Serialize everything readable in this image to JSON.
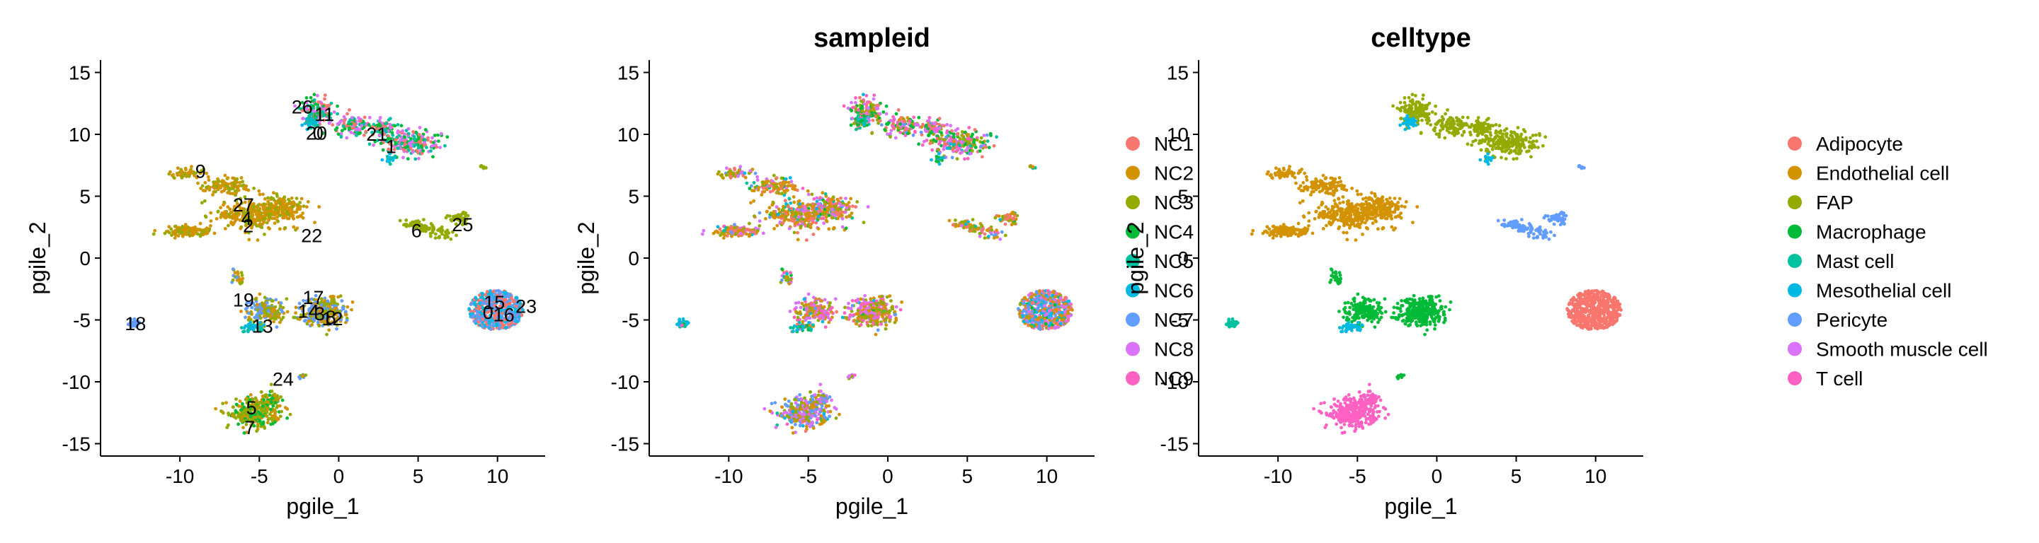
{
  "colors": {
    "NC1": "#F8766D",
    "NC2": "#D39200",
    "NC3": "#93AA00",
    "NC4": "#00BA38",
    "NC5": "#00C19F",
    "NC6": "#00B9E3",
    "NC7": "#619CFF",
    "NC8": "#DB72FB",
    "NC9": "#FF61C3",
    "Adipocyte": "#F8766D",
    "Endothelial cell": "#D39200",
    "FAP": "#93AA00",
    "Macrophage": "#00BA38",
    "Mast cell": "#00C19F",
    "Mesothelial cell": "#00B9E3",
    "Pericyte": "#619CFF",
    "Smooth muscle cell": "#DB72FB",
    "T cell": "#FF61C3"
  },
  "chart_data": [
    {
      "type": "scatter",
      "title": "",
      "xlabel": "pgile_1",
      "ylabel": "pgile_2",
      "xlim": [
        -15,
        13
      ],
      "ylim": [
        -16,
        16
      ],
      "xticks": [
        -10,
        -5,
        0,
        5,
        10
      ],
      "xtick_labels": [
        "-10",
        "-5",
        "0",
        "5",
        "10"
      ],
      "yticks": [
        -15,
        -10,
        -5,
        0,
        5,
        10,
        15
      ],
      "ytick_labels": [
        "-15",
        "-10",
        "-5",
        "0",
        "5",
        "10",
        "15"
      ],
      "legend": null,
      "cluster_labels": [
        {
          "text": "26",
          "x": -2.3,
          "y": 12.2
        },
        {
          "text": "11",
          "x": -0.9,
          "y": 11.6
        },
        {
          "text": "20",
          "x": -1.4,
          "y": 10.1
        },
        {
          "text": "0",
          "x": -1.3,
          "y": 10.1
        },
        {
          "text": "21",
          "x": 2.4,
          "y": 10.0
        },
        {
          "text": "1",
          "x": 3.3,
          "y": 9.0
        },
        {
          "text": "9",
          "x": -8.7,
          "y": 7.0
        },
        {
          "text": "27",
          "x": -6.0,
          "y": 4.3
        },
        {
          "text": "4",
          "x": -5.8,
          "y": 3.2
        },
        {
          "text": "2",
          "x": -5.7,
          "y": 2.6
        },
        {
          "text": "22",
          "x": -1.7,
          "y": 1.8
        },
        {
          "text": "6",
          "x": 4.9,
          "y": 2.2
        },
        {
          "text": "25",
          "x": 7.8,
          "y": 2.7
        },
        {
          "text": "19",
          "x": -6.0,
          "y": -3.4
        },
        {
          "text": "17",
          "x": -1.6,
          "y": -3.2
        },
        {
          "text": "14",
          "x": -1.9,
          "y": -4.3
        },
        {
          "text": "3",
          "x": -1.2,
          "y": -4.5
        },
        {
          "text": "8",
          "x": -0.5,
          "y": -4.8
        },
        {
          "text": "12",
          "x": -0.4,
          "y": -4.9
        },
        {
          "text": "13",
          "x": -4.8,
          "y": -5.5
        },
        {
          "text": "18",
          "x": -12.8,
          "y": -5.3
        },
        {
          "text": "15",
          "x": 9.8,
          "y": -3.6
        },
        {
          "text": "23",
          "x": 11.8,
          "y": -3.9
        },
        {
          "text": "0",
          "x": 9.4,
          "y": -4.4
        },
        {
          "text": "16",
          "x": 10.4,
          "y": -4.6
        },
        {
          "text": "24",
          "x": -3.5,
          "y": -9.8
        },
        {
          "text": "5",
          "x": -5.5,
          "y": -12.1
        },
        {
          "text": "7",
          "x": -5.6,
          "y": -13.7
        }
      ]
    },
    {
      "type": "scatter",
      "title": "sampleid",
      "xlabel": "pgile_1",
      "ylabel": "pgile_2",
      "xlim": [
        -15,
        13
      ],
      "ylim": [
        -16,
        16
      ],
      "xticks": [
        -10,
        -5,
        0,
        5,
        10
      ],
      "xtick_labels": [
        "-10",
        "-5",
        "0",
        "5",
        "10"
      ],
      "yticks": [
        -15,
        -10,
        -5,
        0,
        5,
        10,
        15
      ],
      "ytick_labels": [
        "-15",
        "-10",
        "-5",
        "0",
        "5",
        "10",
        "15"
      ],
      "legend": {
        "placement": "right",
        "entries": [
          "NC1",
          "NC2",
          "NC3",
          "NC4",
          "NC5",
          "NC6",
          "NC7",
          "NC8",
          "NC9"
        ]
      }
    },
    {
      "type": "scatter",
      "title": "celltype",
      "xlabel": "pgile_1",
      "ylabel": "pgile_2",
      "xlim": [
        -15,
        13
      ],
      "ylim": [
        -16,
        16
      ],
      "xticks": [
        -10,
        -5,
        0,
        5,
        10
      ],
      "xtick_labels": [
        "-10",
        "-5",
        "0",
        "5",
        "10"
      ],
      "yticks": [
        -15,
        -10,
        -5,
        0,
        5,
        10,
        15
      ],
      "ytick_labels": [
        "-15",
        "-10",
        "-5",
        "0",
        "5",
        "10",
        "15"
      ],
      "legend": {
        "placement": "right",
        "entries": [
          "Adipocyte",
          "Endothelial cell",
          "FAP",
          "Macrophage",
          "Mast cell",
          "Mesothelial cell",
          "Pericyte",
          "Smooth muscle cell",
          "T cell"
        ]
      }
    }
  ]
}
